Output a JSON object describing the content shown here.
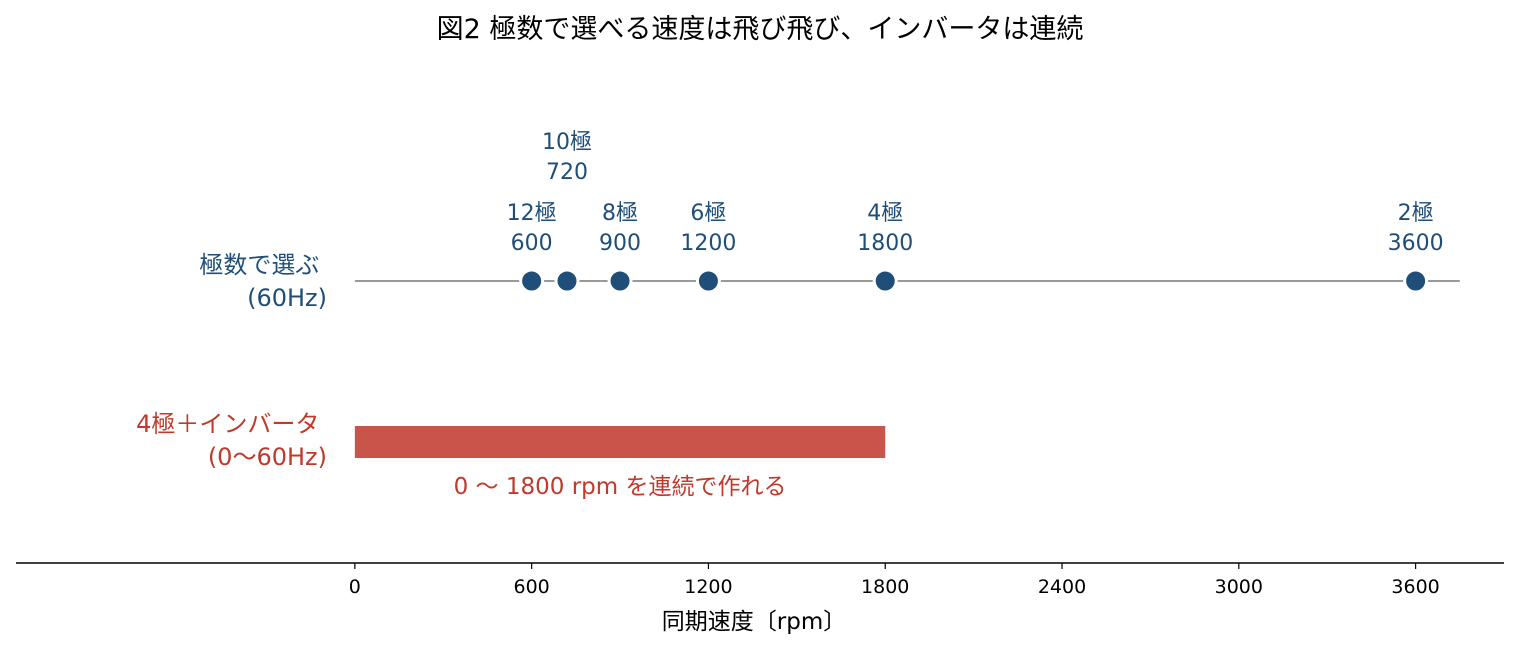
{
  "chart_data": {
    "type": "scatter",
    "title": "図2 極数で選べる速度は飛び飛び、インバータは連続",
    "xlabel": "同期速度〔rpm〕",
    "ylabel": "",
    "xlim": [
      -1150,
      3900
    ],
    "xticks": [
      0,
      600,
      1200,
      1800,
      2400,
      3000,
      3600
    ],
    "tick_labels": [
      "0",
      "600",
      "1200",
      "1800",
      "2400",
      "3000",
      "3600"
    ],
    "grid": false,
    "series": [
      {
        "label_lines": [
          "極数で選ぶ",
          "(60Hz)"
        ],
        "color": "#1f4e79",
        "line_color": "#999999",
        "line_range": [
          0,
          3750
        ],
        "points": [
          {
            "poles": "12極",
            "rpm": 600,
            "pole_label": "12極",
            "rpm_label": "600",
            "raised": false
          },
          {
            "poles": "10極",
            "rpm": 720,
            "pole_label": "10極",
            "rpm_label": "720",
            "raised": true
          },
          {
            "poles": "8極",
            "rpm": 900,
            "pole_label": "8極",
            "rpm_label": "900",
            "raised": false
          },
          {
            "poles": "6極",
            "rpm": 1200,
            "pole_label": "6極",
            "rpm_label": "1200",
            "raised": false
          },
          {
            "poles": "4極",
            "rpm": 1800,
            "pole_label": "4極",
            "rpm_label": "1800",
            "raised": false
          },
          {
            "poles": "2極",
            "rpm": 3600,
            "pole_label": "2極",
            "rpm_label": "3600",
            "raised": false
          }
        ]
      },
      {
        "label_lines": [
          "4極＋インバータ",
          "(0〜60Hz)"
        ],
        "color": "#c9554a",
        "text_color": "#c0392b",
        "range": [
          0,
          1800
        ],
        "annotation": "0 〜 1800 rpm を連続で作れる"
      }
    ]
  }
}
